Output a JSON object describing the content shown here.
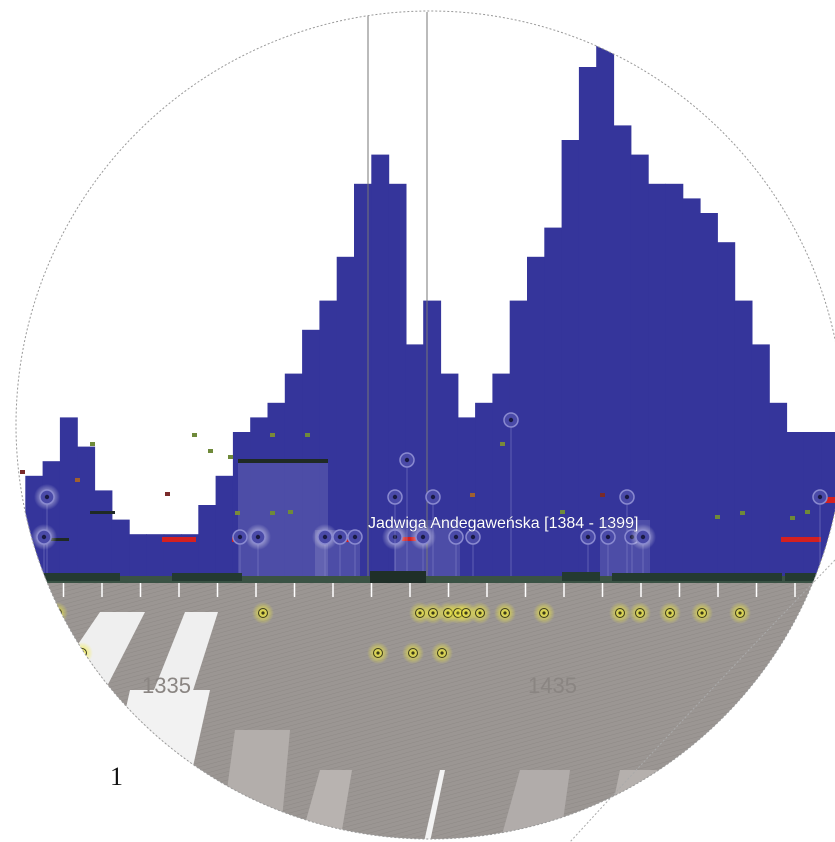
{
  "tooltip": {
    "text": "Jadwiga Andegaweńska [1384 - 1399]"
  },
  "timeline": {
    "year_labels": [
      {
        "text": "1335"
      },
      {
        "text": "1435"
      }
    ]
  },
  "page_number": "1",
  "colors": {
    "histogram": "#35359b",
    "ground": "#9b9693",
    "highlight_red": "#d42020",
    "marker_yellow": "#e8e23a",
    "timeline_bar": "#243a30"
  },
  "chart_data": {
    "type": "bar",
    "x": [
      1280,
      1285,
      1290,
      1295,
      1300,
      1305,
      1310,
      1315,
      1320,
      1325,
      1330,
      1335,
      1340,
      1345,
      1350,
      1355,
      1360,
      1365,
      1370,
      1375,
      1380,
      1385,
      1390,
      1395,
      1400,
      1405,
      1410,
      1415,
      1420,
      1425,
      1430,
      1435,
      1440,
      1445,
      1450,
      1455,
      1460,
      1465,
      1470,
      1475,
      1480,
      1485,
      1490,
      1495,
      1500,
      1505,
      1510,
      1515,
      1520,
      1525
    ],
    "values": [
      2,
      7,
      8,
      11,
      9,
      6,
      4,
      3,
      3,
      3,
      3,
      5,
      7,
      10,
      11,
      12,
      14,
      17,
      19,
      22,
      27,
      29,
      27,
      16,
      19,
      14,
      11,
      12,
      14,
      19,
      22,
      24,
      30,
      35,
      37,
      31,
      29,
      27,
      27,
      26,
      25,
      23,
      19,
      16,
      12,
      10,
      10,
      10,
      12,
      14
    ],
    "series": [
      {
        "values": [
          2,
          7,
          8,
          11,
          9,
          6,
          4,
          3,
          3,
          3,
          3,
          5,
          7,
          10,
          11,
          12,
          14,
          17,
          19,
          22,
          27,
          29,
          27,
          16,
          19,
          14,
          11,
          12,
          14,
          19,
          22,
          24,
          30,
          35,
          37,
          31,
          29,
          27,
          27,
          26,
          25,
          23,
          19,
          16,
          12,
          10,
          10,
          10,
          12,
          14
        ]
      }
    ]
  }
}
